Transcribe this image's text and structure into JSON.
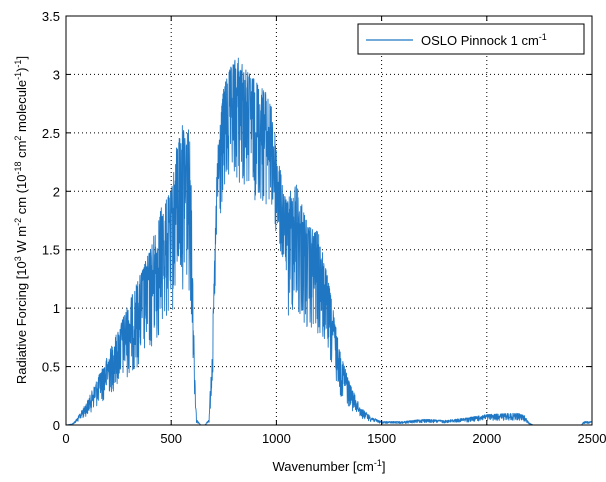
{
  "chart_data": {
    "type": "line",
    "title": "",
    "xlabel": {
      "prefix": "Wavenumber [cm",
      "sup": "-1",
      "suffix": "]"
    },
    "ylabel": {
      "p1": "Radiative Forcing [10",
      "s1": "3",
      "p2": " W m",
      "s2": "-2",
      "p3": " cm (10",
      "s3": "-18",
      "p4": " cm",
      "s4": "2",
      "p5": " molecule",
      "s5": "-1",
      "p6": ")",
      "s6": "-1",
      "p7": "]"
    },
    "xlim": [
      0,
      2500
    ],
    "ylim": [
      0,
      3.5
    ],
    "xticks": [
      0,
      500,
      1000,
      1500,
      2000,
      2500
    ],
    "yticks": [
      0,
      0.5,
      1,
      1.5,
      2,
      2.5,
      3,
      3.5
    ],
    "xtick_labels": [
      "0",
      "500",
      "1000",
      "1500",
      "2000",
      "2500"
    ],
    "ytick_labels": [
      "0",
      "0.5",
      "1",
      "1.5",
      "2",
      "2.5",
      "3",
      "3.5"
    ],
    "grid": true,
    "legend_position": "top-right",
    "series": [
      {
        "name": "OSLO Pinnock 1 cm-1",
        "legend_label": {
          "text": "OSLO Pinnock 1 cm",
          "sup": "-1"
        },
        "color": "#1f77c4",
        "x_range": [
          0,
          2500
        ],
        "envelope": {
          "x": [
            0,
            30,
            50,
            100,
            200,
            300,
            400,
            450,
            500,
            530,
            560,
            590,
            600,
            610,
            620,
            640,
            660,
            680,
            700,
            720,
            750,
            780,
            800,
            820,
            850,
            900,
            950,
            980,
            1000,
            1030,
            1050,
            1080,
            1100,
            1150,
            1200,
            1250,
            1300,
            1350,
            1400,
            1450,
            1500,
            1600,
            1700,
            1800,
            1900,
            2000,
            2100,
            2150,
            2180,
            2200,
            2220,
            2300,
            2400,
            2450,
            2460,
            2500
          ],
          "y": [
            0,
            0.01,
            0.05,
            0.2,
            0.6,
            1.05,
            1.5,
            1.85,
            2.0,
            2.45,
            2.6,
            2.5,
            1.6,
            0.6,
            0.05,
            0.0,
            0.0,
            0.05,
            1.0,
            2.4,
            2.9,
            3.05,
            3.12,
            3.15,
            3.05,
            2.95,
            2.85,
            2.7,
            2.4,
            2.05,
            1.9,
            2.1,
            2.05,
            1.7,
            1.65,
            1.2,
            0.65,
            0.35,
            0.15,
            0.07,
            0.03,
            0.03,
            0.05,
            0.04,
            0.06,
            0.09,
            0.1,
            0.1,
            0.08,
            0.02,
            0.0,
            0.0,
            0.0,
            0.0,
            0.03,
            0.03
          ]
        }
      }
    ]
  }
}
